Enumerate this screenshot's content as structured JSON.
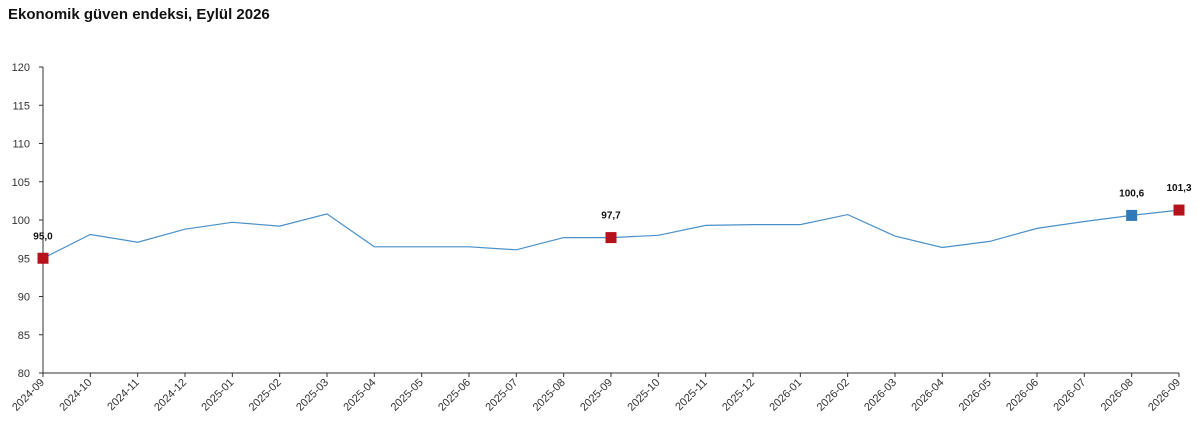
{
  "title": "Ekonomik güven endeksi, Eylül 2026",
  "colors": {
    "line": "#4a90c8",
    "marker_red": "#b5121b",
    "marker_blue": "#2f7ab8",
    "axis": "#333333",
    "text": "#111111"
  },
  "chart_data": {
    "type": "line",
    "title": "Ekonomik güven endeksi, Eylül 2026",
    "xlabel": "",
    "ylabel": "",
    "ylim": [
      80,
      120
    ],
    "yticks": [
      80,
      85,
      90,
      95,
      100,
      105,
      110,
      115,
      120
    ],
    "grid": false,
    "categories": [
      "2024-09",
      "2024-10",
      "2024-11",
      "2024-12",
      "2025-01",
      "2025-02",
      "2025-03",
      "2025-04",
      "2025-05",
      "2025-06",
      "2025-07",
      "2025-08",
      "2025-09",
      "2025-10",
      "2025-11",
      "2025-12",
      "2026-01",
      "2026-02",
      "2026-03",
      "2026-04",
      "2026-05",
      "2026-06",
      "2026-07",
      "2026-08",
      "2026-09"
    ],
    "series": [
      {
        "values": [
          95.0,
          98.1,
          97.1,
          98.8,
          99.7,
          99.2,
          100.8,
          96.5,
          96.5,
          96.5,
          96.1,
          97.7,
          97.7,
          98.0,
          99.3,
          99.4,
          99.4,
          100.7,
          97.9,
          96.4,
          97.2,
          98.9,
          99.8,
          100.6,
          101.3
        ]
      }
    ],
    "highlights": [
      {
        "category": "2024-09",
        "value": 95.0,
        "label": "95,0",
        "color": "red"
      },
      {
        "category": "2025-09",
        "value": 97.7,
        "label": "97,7",
        "color": "red"
      },
      {
        "category": "2026-08",
        "value": 100.6,
        "label": "100,6",
        "color": "blue"
      },
      {
        "category": "2026-09",
        "value": 101.3,
        "label": "101,3",
        "color": "red"
      }
    ]
  }
}
